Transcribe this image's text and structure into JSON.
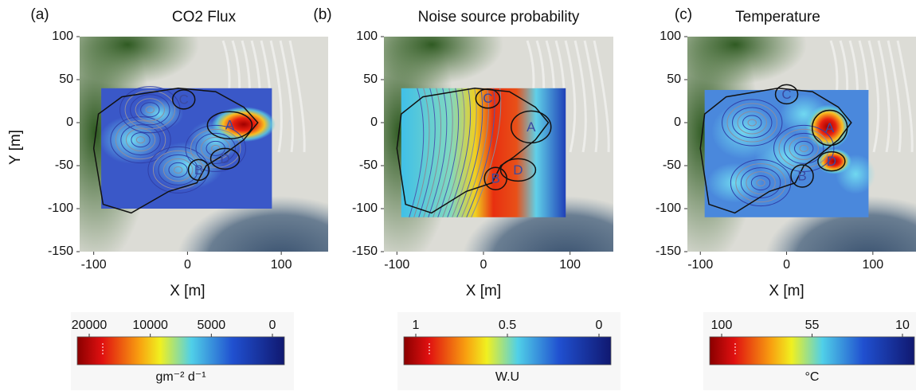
{
  "chart_data": [
    {
      "type": "heatmap",
      "panel_label": "(a)",
      "title": "CO2 Flux",
      "xlabel": "X [m]",
      "ylabel": "Y [m]",
      "xlim": [
        -115,
        150
      ],
      "ylim": [
        -150,
        100
      ],
      "xticks": [
        -100,
        0,
        100
      ],
      "yticks": [
        -150,
        -100,
        -50,
        0,
        50,
        100
      ],
      "regions": [
        "A",
        "B",
        "C",
        "D"
      ],
      "colorbar": {
        "ticks": [
          20000,
          10000,
          5000,
          0
        ],
        "unit": "gm⁻² d⁻¹"
      }
    },
    {
      "type": "heatmap",
      "panel_label": "(b)",
      "title": "Noise source probability",
      "xlabel": "X [m]",
      "xlim": [
        -115,
        150
      ],
      "ylim": [
        -150,
        100
      ],
      "xticks": [
        -100,
        0,
        100
      ],
      "yticks": [
        -150,
        -100,
        -50,
        0,
        50,
        100
      ],
      "regions": [
        "A",
        "B",
        "C",
        "D"
      ],
      "colorbar": {
        "ticks": [
          1,
          {
            "value": 0.5,
            "label": "0.5"
          },
          0
        ],
        "unit": "W.U"
      }
    },
    {
      "type": "heatmap",
      "panel_label": "(c)",
      "title": "Temperature",
      "xlabel": "X [m]",
      "xlim": [
        -115,
        150
      ],
      "ylim": [
        -150,
        100
      ],
      "xticks": [
        -100,
        0,
        100
      ],
      "yticks": [
        -150,
        -100,
        -50,
        0,
        50,
        100
      ],
      "regions": [
        "A",
        "B",
        "C",
        "D"
      ],
      "colorbar": {
        "ticks": [
          100,
          55,
          10
        ],
        "unit": "°C"
      }
    }
  ]
}
